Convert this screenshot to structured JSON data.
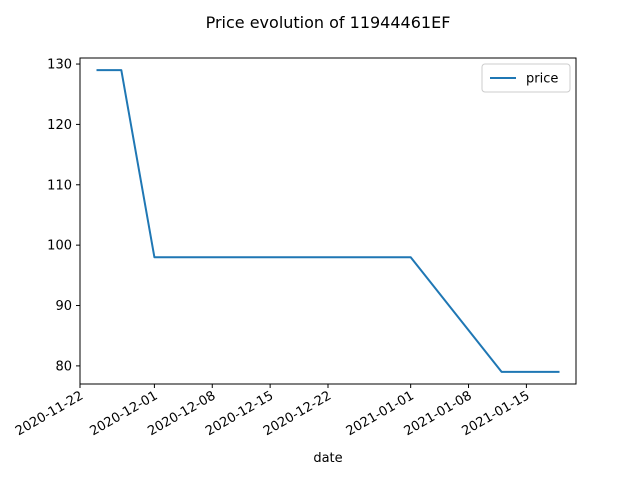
{
  "chart_data": {
    "type": "line",
    "title": "Price evolution of 11944461EF",
    "xlabel": "date",
    "ylabel": "",
    "x_axis_type": "date",
    "xlim": [
      "2020-11-22",
      "2021-01-21"
    ],
    "ylim": [
      77,
      131
    ],
    "x_ticks": [
      "2020-11-22",
      "2020-12-01",
      "2020-12-08",
      "2020-12-15",
      "2020-12-22",
      "2021-01-01",
      "2021-01-08",
      "2021-01-15"
    ],
    "y_ticks": [
      80,
      90,
      100,
      110,
      120,
      130
    ],
    "grid": false,
    "legend_position": "top-right",
    "series": [
      {
        "name": "price",
        "color": "#1f77b4",
        "x": [
          "2020-11-24",
          "2020-11-27",
          "2020-12-01",
          "2021-01-01",
          "2021-01-12",
          "2021-01-19"
        ],
        "y": [
          129,
          129,
          98,
          98,
          79,
          79
        ]
      }
    ]
  }
}
